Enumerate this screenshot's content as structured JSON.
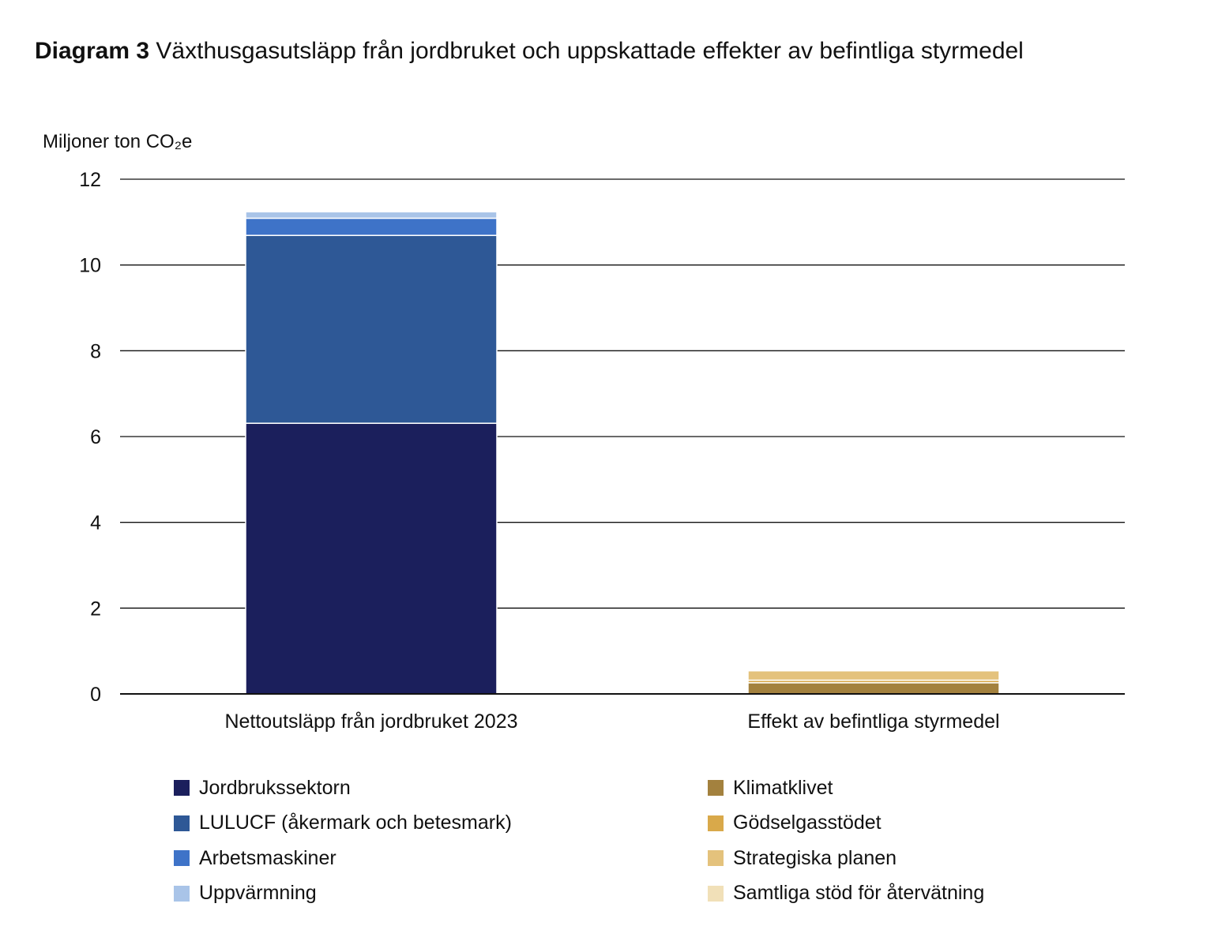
{
  "chart_data": {
    "type": "bar",
    "stacked": true,
    "title_bold": "Diagram 3",
    "title": "Växthusgasutsläpp från jordbruket och uppskattade effekter av befintliga styrmedel",
    "ylabel": "Miljoner ton CO₂e",
    "ylim": [
      0,
      12
    ],
    "yticks": [
      0,
      2,
      4,
      6,
      8,
      10,
      12
    ],
    "grid": true,
    "categories": [
      "Nettoutsläpp från jordbruket 2023",
      "Effekt av befintliga styrmedel"
    ],
    "series": [
      {
        "name": "Jordbrukssektorn",
        "color": "#1B1F5C",
        "values": [
          6.31,
          0
        ]
      },
      {
        "name": "LULUCF (åkermark och betesmark)",
        "color": "#2E5896",
        "values": [
          4.38,
          0
        ]
      },
      {
        "name": "Arbetsmaskiner",
        "color": "#3E73C8",
        "values": [
          0.4,
          0
        ]
      },
      {
        "name": "Uppvärmning",
        "color": "#A9C4E8",
        "values": [
          0.15,
          0
        ]
      },
      {
        "name": "Klimatklivet",
        "color": "#A3813E",
        "values": [
          0,
          0.26
        ]
      },
      {
        "name": "Gödselgasstödet",
        "color": "#D9A94A",
        "values": [
          0,
          0.06
        ]
      },
      {
        "name": "Strategiska planen",
        "color": "#E4C27C",
        "values": [
          0,
          0.22
        ]
      },
      {
        "name": "Samtliga stöd för återvätning",
        "color": "#F1E0B8",
        "values": [
          0,
          0.02
        ]
      }
    ],
    "legend_position": "bottom"
  }
}
